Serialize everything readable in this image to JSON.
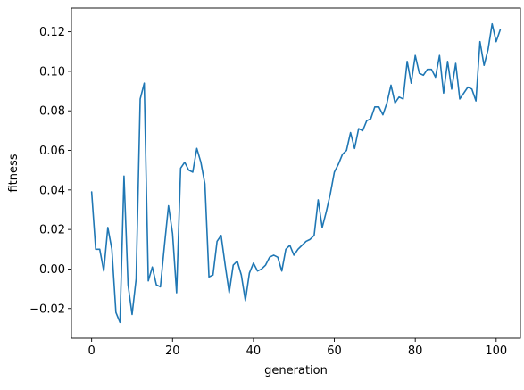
{
  "chart_data": {
    "type": "line",
    "title": "",
    "xlabel": "generation",
    "ylabel": "fitness",
    "xlim": [
      -5,
      106
    ],
    "ylim": [
      -0.035,
      0.132
    ],
    "xticks": [
      0,
      20,
      40,
      60,
      80,
      100
    ],
    "xtick_labels": [
      "0",
      "20",
      "40",
      "60",
      "80",
      "100"
    ],
    "yticks": [
      -0.02,
      0.0,
      0.02,
      0.04,
      0.06,
      0.08,
      0.1,
      0.12
    ],
    "ytick_labels": [
      "−0.02",
      "0.00",
      "0.02",
      "0.04",
      "0.06",
      "0.08",
      "0.10",
      "0.12"
    ],
    "grid": false,
    "legend": "none",
    "series": [
      {
        "color": "#1f77b4",
        "x": [
          0,
          1,
          2,
          3,
          4,
          5,
          6,
          7,
          8,
          9,
          10,
          11,
          12,
          13,
          14,
          15,
          16,
          17,
          18,
          19,
          20,
          21,
          22,
          23,
          24,
          25,
          26,
          27,
          28,
          29,
          30,
          31,
          32,
          33,
          34,
          35,
          36,
          37,
          38,
          39,
          40,
          41,
          42,
          43,
          44,
          45,
          46,
          47,
          48,
          49,
          50,
          51,
          52,
          53,
          54,
          55,
          56,
          57,
          58,
          59,
          60,
          61,
          62,
          63,
          64,
          65,
          66,
          67,
          68,
          69,
          70,
          71,
          72,
          73,
          74,
          75,
          76,
          77,
          78,
          79,
          80,
          81,
          82,
          83,
          84,
          85,
          86,
          87,
          88,
          89,
          90,
          91,
          92,
          93,
          94,
          95,
          96,
          97,
          98,
          99,
          100,
          101
        ],
        "values": [
          0.039,
          0.01,
          0.01,
          -0.001,
          0.021,
          0.01,
          -0.022,
          -0.027,
          0.047,
          -0.008,
          -0.023,
          -0.005,
          0.086,
          0.094,
          -0.006,
          0.001,
          -0.008,
          -0.009,
          0.012,
          0.032,
          0.018,
          -0.012,
          0.051,
          0.054,
          0.05,
          0.049,
          0.061,
          0.054,
          0.043,
          -0.004,
          -0.003,
          0.014,
          0.017,
          0.002,
          -0.012,
          0.002,
          0.004,
          -0.003,
          -0.016,
          -0.002,
          0.003,
          -0.001,
          0.0,
          0.002,
          0.006,
          0.007,
          0.006,
          -0.001,
          0.01,
          0.012,
          0.007,
          0.01,
          0.012,
          0.014,
          0.015,
          0.017,
          0.035,
          0.021,
          0.029,
          0.038,
          0.049,
          0.053,
          0.058,
          0.06,
          0.069,
          0.061,
          0.071,
          0.07,
          0.075,
          0.076,
          0.082,
          0.082,
          0.078,
          0.084,
          0.093,
          0.084,
          0.087,
          0.086,
          0.105,
          0.094,
          0.108,
          0.099,
          0.098,
          0.101,
          0.101,
          0.097,
          0.108,
          0.089,
          0.105,
          0.091,
          0.104,
          0.086,
          0.089,
          0.092,
          0.091,
          0.085,
          0.115,
          0.103,
          0.111,
          0.124,
          0.115,
          0.121
        ]
      }
    ]
  }
}
